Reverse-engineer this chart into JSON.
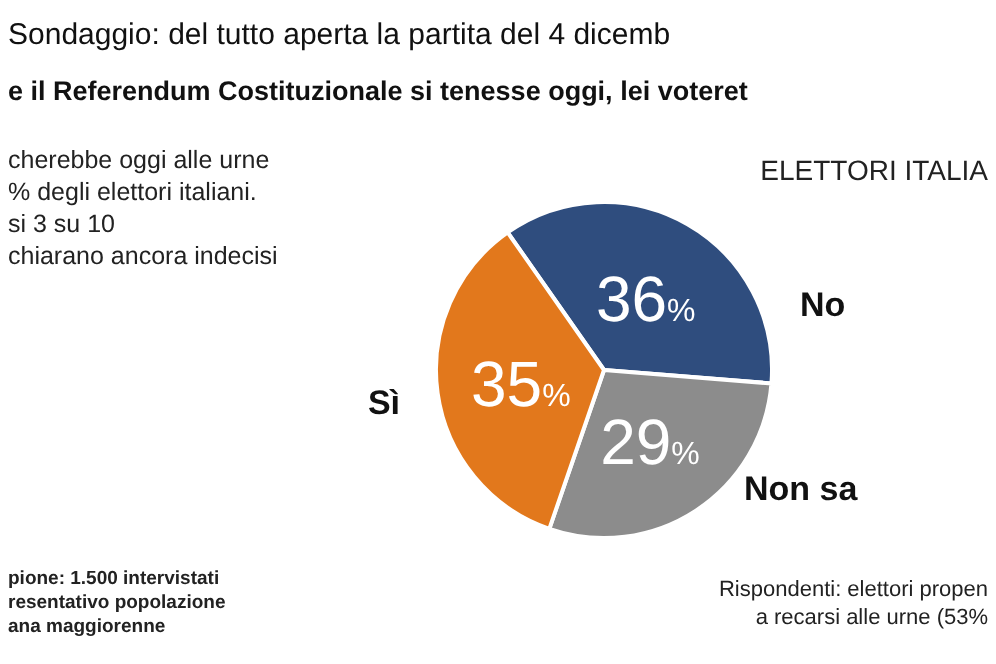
{
  "chart_data": {
    "type": "pie",
    "title": "Sondaggio: del tutto aperta la partita del 4 dicemb",
    "subtitle": "e il Referendum Costituzionale si tenesse oggi, lei voteret",
    "categories": [
      "No",
      "Non sa",
      "Sì"
    ],
    "values": [
      36,
      29,
      35
    ],
    "colors": [
      "#2f4d7e",
      "#8c8c8c",
      "#e2781c"
    ],
    "value_labels": [
      "36%",
      "29%",
      "35%"
    ],
    "legend": false,
    "annotations": [
      "cherebbe oggi alle urne\n% degli elettori italiani.\nsi 3 su 10\nchiarano ancora indecisi",
      "ELETTORI ITALIA",
      "pione: 1.500 intervistati\nresentativo popolazione\nana maggiorenne",
      "Rispondenti: elettori propen\na recarsi alle urne (53%"
    ]
  }
}
